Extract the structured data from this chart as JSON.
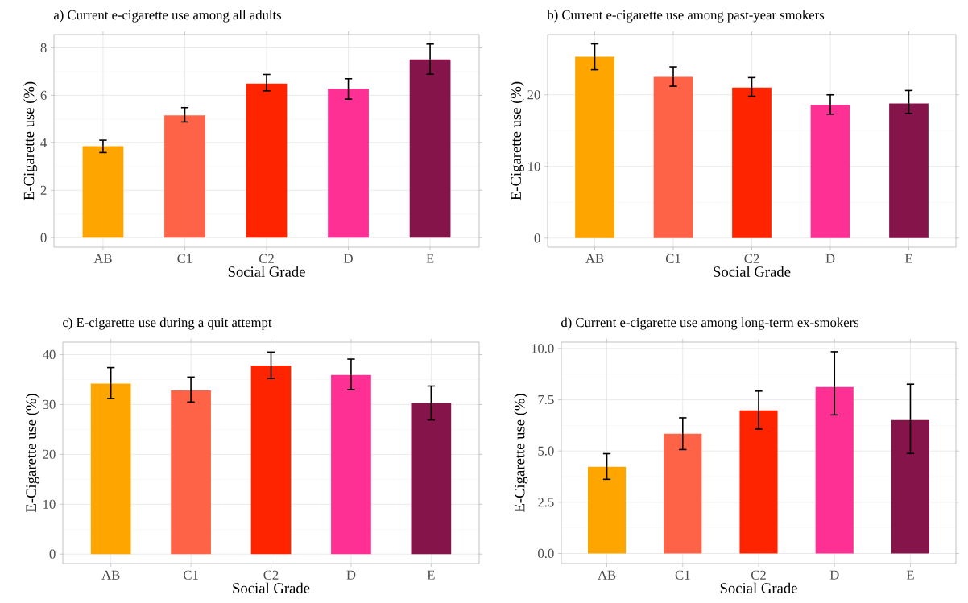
{
  "chart_data": [
    {
      "type": "bar",
      "title": "a) Current e-cigarette use among all adults",
      "xlabel": "Social Grade",
      "ylabel": "E-Cigarette use (%)",
      "categories": [
        "AB",
        "C1",
        "C2",
        "D",
        "E"
      ],
      "values": [
        3.86,
        5.16,
        6.5,
        6.28,
        7.52
      ],
      "colors": [
        "#ffa500",
        "#ff6347",
        "#ff2400",
        "#ff3094",
        "#85144b"
      ],
      "errors": [
        [
          3.59,
          4.11
        ],
        [
          4.88,
          5.48
        ],
        [
          6.19,
          6.88
        ],
        [
          5.84,
          6.7
        ],
        [
          6.89,
          8.16
        ]
      ],
      "ylim": [
        -0.4,
        8.56
      ],
      "yticks": [
        0,
        2,
        4,
        6,
        8
      ],
      "grid": true
    },
    {
      "type": "bar",
      "title": "b) Current e-cigarette use among past-year smokers",
      "xlabel": "Social Grade",
      "ylabel": "E-Cigarette use (%)",
      "categories": [
        "AB",
        "C1",
        "C2",
        "D",
        "E"
      ],
      "values": [
        25.3,
        22.5,
        21.0,
        18.6,
        18.8
      ],
      "colors": [
        "#ffa500",
        "#ff6347",
        "#ff2400",
        "#ff3094",
        "#85144b"
      ],
      "errors": [
        [
          23.5,
          27.1
        ],
        [
          21.2,
          23.9
        ],
        [
          19.8,
          22.4
        ],
        [
          17.3,
          20.0
        ],
        [
          17.4,
          20.6
        ]
      ],
      "ylim": [
        -1.26,
        28.4
      ],
      "yticks": [
        0,
        10,
        20
      ],
      "grid": true
    },
    {
      "type": "bar",
      "title": "c) E-cigarette use during a quit attempt",
      "xlabel": "Social Grade",
      "ylabel": "E-Cigarette use (%)",
      "categories": [
        "AB",
        "C1",
        "C2",
        "D",
        "E"
      ],
      "values": [
        34.2,
        32.8,
        37.8,
        35.9,
        30.3
      ],
      "colors": [
        "#ffa500",
        "#ff6347",
        "#ff2400",
        "#ff3094",
        "#85144b"
      ],
      "errors": [
        [
          31.2,
          37.4
        ],
        [
          30.5,
          35.5
        ],
        [
          35.2,
          40.5
        ],
        [
          33.0,
          39.1
        ],
        [
          26.9,
          33.7
        ]
      ],
      "ylim": [
        -1.9,
        42.5
      ],
      "yticks": [
        0,
        10,
        20,
        30,
        40
      ],
      "grid": true
    },
    {
      "type": "bar",
      "title": "d) Current e-cigarette use among long-term ex-smokers",
      "xlabel": "Social Grade",
      "ylabel": "E-Cigarette use (%)",
      "categories": [
        "AB",
        "C1",
        "C2",
        "D",
        "E"
      ],
      "values": [
        4.23,
        5.84,
        6.98,
        8.12,
        6.51
      ],
      "colors": [
        "#ffa500",
        "#ff6347",
        "#ff2400",
        "#ff3094",
        "#85144b"
      ],
      "errors": [
        [
          3.62,
          4.87
        ],
        [
          5.07,
          6.62
        ],
        [
          6.07,
          7.92
        ],
        [
          6.76,
          9.84
        ],
        [
          4.88,
          8.26
        ]
      ],
      "ylim": [
        -0.49,
        10.31
      ],
      "yticks": [
        {
          "value": 0,
          "label": "0.0"
        },
        {
          "value": 2.5,
          "label": "2.5"
        },
        {
          "value": 5,
          "label": "5.0"
        },
        {
          "value": 7.5,
          "label": "7.5"
        },
        {
          "value": 10,
          "label": "10.0"
        }
      ],
      "grid": true
    }
  ]
}
